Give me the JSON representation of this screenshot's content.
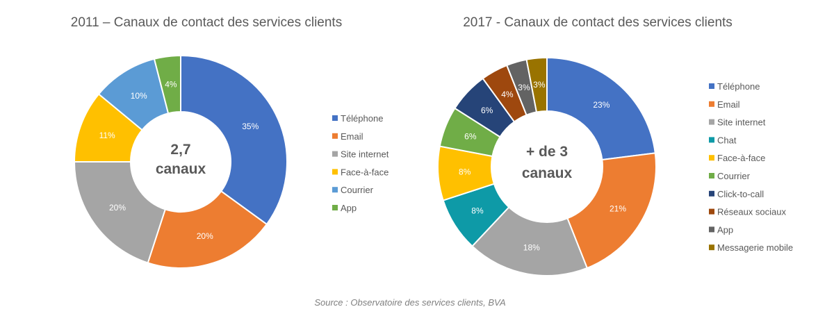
{
  "chart_data": [
    {
      "type": "pie",
      "title": "2011 – Canaux de contact des services clients",
      "center_text": [
        "2,7",
        "canaux"
      ],
      "categories": [
        "Téléphone",
        "Email",
        "Site internet",
        "Face-à-face",
        "Courrier",
        "App"
      ],
      "values": [
        35,
        20,
        20,
        11,
        10,
        4
      ],
      "value_labels": [
        "35%",
        "20%",
        "20%",
        "11%",
        "10%",
        "4%"
      ],
      "colors": [
        "#4472C4",
        "#ED7D31",
        "#A5A5A5",
        "#FFC000",
        "#5B9BD5",
        "#70AD47"
      ],
      "legend_position": "right"
    },
    {
      "type": "pie",
      "title": "2017 - Canaux de contact des services clients",
      "center_text": [
        "+ de 3",
        "canaux"
      ],
      "categories": [
        "Téléphone",
        "Email",
        "Site internet",
        "Chat",
        "Face-à-face",
        "Courrier",
        "Click-to-call",
        "Réseaux sociaux",
        "App",
        "Messagerie mobile"
      ],
      "values": [
        23,
        21,
        18,
        8,
        8,
        6,
        6,
        4,
        3,
        3
      ],
      "value_labels": [
        "23%",
        "21%",
        "18%",
        "8%",
        "8%",
        "6%",
        "6%",
        "4%",
        "3%",
        "3%"
      ],
      "colors": [
        "#4472C4",
        "#ED7D31",
        "#A5A5A5",
        "#0E9AA7",
        "#FFC000",
        "#70AD47",
        "#264478",
        "#9E480E",
        "#636363",
        "#997300"
      ],
      "legend_position": "right"
    }
  ],
  "source": "Source : Observatoire des services clients, BVA"
}
